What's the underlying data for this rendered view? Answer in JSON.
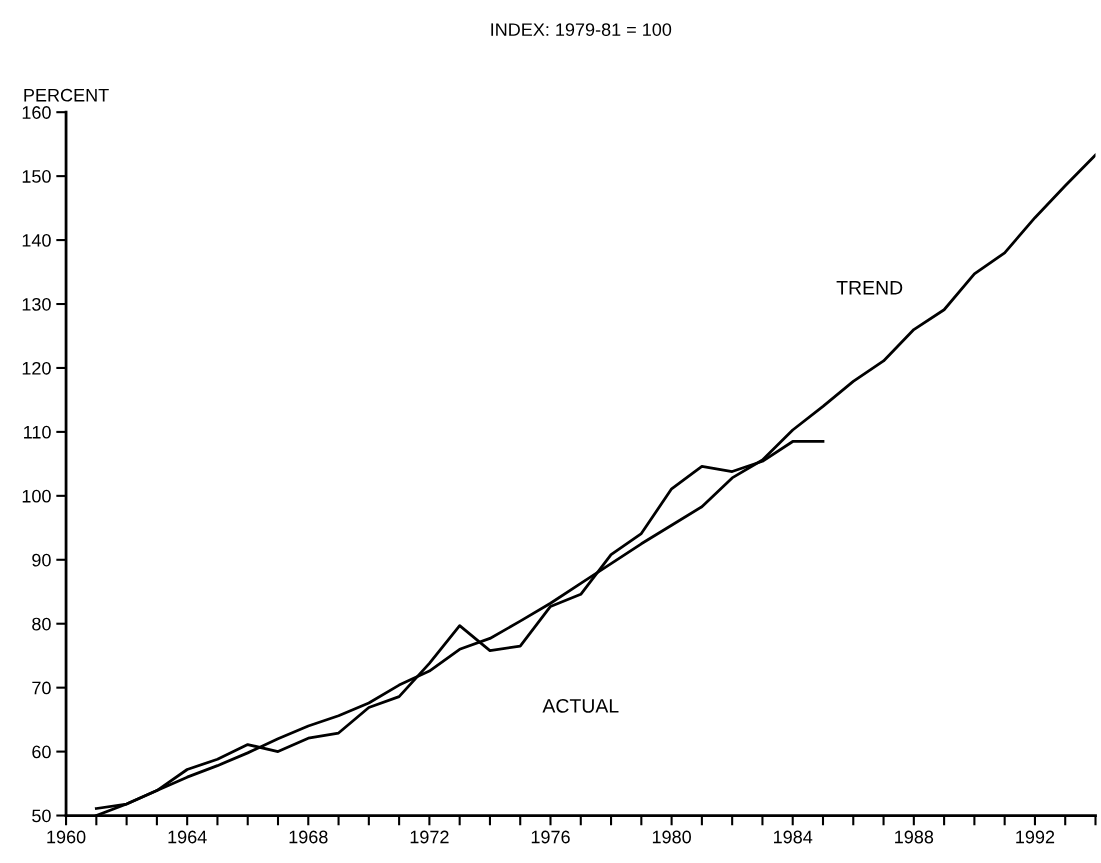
{
  "chart_data": {
    "type": "line",
    "title": "INDEX: 1979-81 = 100",
    "ylabel": "PERCENT",
    "xlim": [
      1960,
      1994
    ],
    "ylim": [
      50,
      160
    ],
    "xticks": [
      {
        "value": 1960,
        "label": "1960"
      },
      {
        "value": 1961,
        "label": null
      },
      {
        "value": 1962,
        "label": null
      },
      {
        "value": 1963,
        "label": null
      },
      {
        "value": 1964,
        "label": "1964"
      },
      {
        "value": 1965,
        "label": null
      },
      {
        "value": 1966,
        "label": null
      },
      {
        "value": 1967,
        "label": null
      },
      {
        "value": 1968,
        "label": "1968"
      },
      {
        "value": 1969,
        "label": null
      },
      {
        "value": 1970,
        "label": null
      },
      {
        "value": 1971,
        "label": null
      },
      {
        "value": 1972,
        "label": "1972"
      },
      {
        "value": 1973,
        "label": null
      },
      {
        "value": 1974,
        "label": null
      },
      {
        "value": 1975,
        "label": null
      },
      {
        "value": 1976,
        "label": "1976"
      },
      {
        "value": 1977,
        "label": null
      },
      {
        "value": 1978,
        "label": null
      },
      {
        "value": 1979,
        "label": null
      },
      {
        "value": 1980,
        "label": "1980"
      },
      {
        "value": 1981,
        "label": null
      },
      {
        "value": 1982,
        "label": null
      },
      {
        "value": 1983,
        "label": null
      },
      {
        "value": 1984,
        "label": "1984"
      },
      {
        "value": 1985,
        "label": null
      },
      {
        "value": 1986,
        "label": null
      },
      {
        "value": 1987,
        "label": null
      },
      {
        "value": 1988,
        "label": "1988"
      },
      {
        "value": 1989,
        "label": null
      },
      {
        "value": 1990,
        "label": null
      },
      {
        "value": 1991,
        "label": null
      },
      {
        "value": 1992,
        "label": "1992"
      },
      {
        "value": 1993,
        "label": null
      },
      {
        "value": 1994,
        "label": null
      }
    ],
    "yticks": [
      50,
      60,
      70,
      80,
      90,
      100,
      110,
      120,
      130,
      140,
      150,
      160
    ],
    "grid": false,
    "legend": false,
    "marker": "none",
    "line_style": "solid",
    "series": [
      {
        "name": "ACTUAL",
        "color": "#000000",
        "x": [
          1961,
          1962,
          1963,
          1964,
          1965,
          1966,
          1967,
          1968,
          1969,
          1970,
          1971,
          1972,
          1973,
          1974,
          1975,
          1976,
          1977,
          1978,
          1979,
          1980,
          1981,
          1982,
          1983,
          1984,
          1985
        ],
        "values": [
          51.1,
          51.8,
          53.9,
          57.2,
          58.8,
          61.1,
          60.0,
          62.1,
          62.9,
          66.9,
          68.6,
          73.8,
          79.7,
          75.8,
          76.5,
          82.7,
          84.6,
          90.8,
          94.1,
          101.1,
          104.6,
          103.8,
          105.4,
          108.5,
          108.5
        ]
      },
      {
        "name": "TREND",
        "color": "#000000",
        "x": [
          1961,
          1962,
          1963,
          1964,
          1965,
          1966,
          1967,
          1968,
          1969,
          1970,
          1971,
          1972,
          1973,
          1974,
          1975,
          1976,
          1977,
          1978,
          1979,
          1980,
          1981,
          1982,
          1983,
          1984,
          1985,
          1986,
          1987,
          1988,
          1989,
          1990,
          1991,
          1992,
          1993,
          1994
        ],
        "values": [
          50.0,
          51.8,
          53.9,
          56.0,
          57.8,
          59.8,
          62.0,
          64.0,
          65.6,
          67.6,
          70.4,
          72.6,
          76.0,
          77.7,
          80.4,
          83.2,
          86.3,
          89.4,
          92.5,
          95.4,
          98.3,
          102.8,
          105.6,
          110.3,
          114.0,
          117.9,
          121.1,
          126.0,
          129.1,
          134.7,
          138.0,
          143.5,
          148.5,
          153.3
        ]
      }
    ]
  }
}
